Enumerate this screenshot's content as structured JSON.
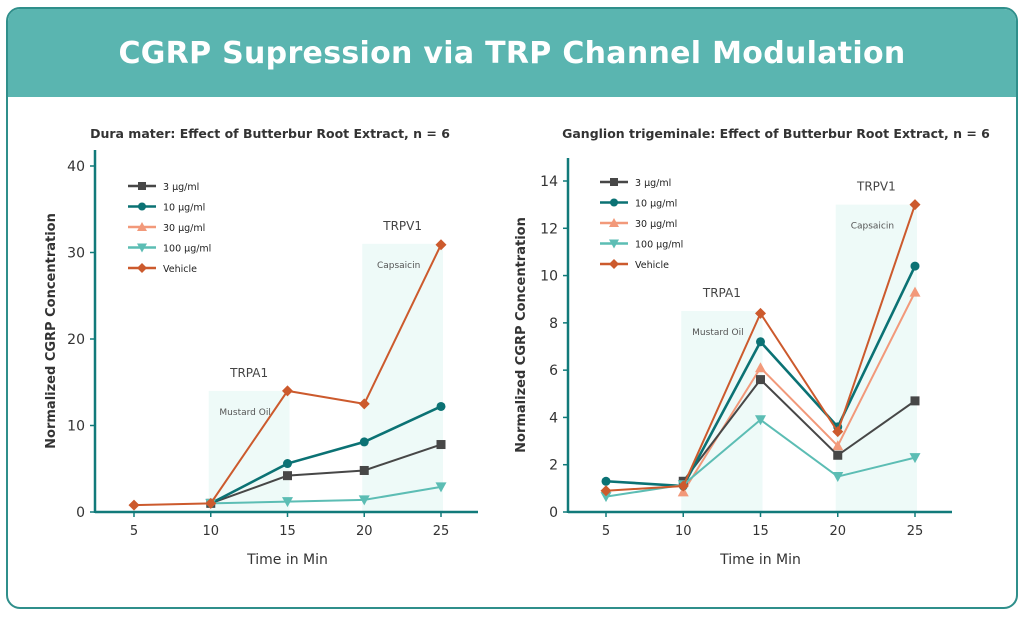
{
  "header": {
    "title": "CGRP Supression via TRP Channel Modulation"
  },
  "chart_data": [
    {
      "type": "line",
      "title": "Dura mater: Effect of Butterbur Root Extract, n = 6",
      "xlabel": "Time in Min",
      "ylabel": "Normalized CGRP Concentration",
      "x": [
        5,
        10,
        15,
        20,
        25
      ],
      "ylim": [
        0,
        40
      ],
      "yticks": [
        0,
        10,
        20,
        30,
        40
      ],
      "legend": "top-left",
      "series": [
        {
          "name": "3 µg/ml",
          "color": "#474747",
          "marker": "square",
          "values": [
            null,
            1.0,
            4.2,
            4.8,
            7.8
          ]
        },
        {
          "name": "10 µg/ml",
          "color": "#0b7274",
          "marker": "circle",
          "values": [
            null,
            1.0,
            5.6,
            8.1,
            12.2
          ]
        },
        {
          "name": "30 µg/ml",
          "color": "#f2997a",
          "marker": "triangle-up",
          "values": [
            null,
            null,
            null,
            null,
            null
          ]
        },
        {
          "name": "100 µg/ml",
          "color": "#5cbdb4",
          "marker": "triangle-down",
          "values": [
            null,
            1.0,
            1.2,
            1.4,
            2.9
          ]
        },
        {
          "name": "Vehicle",
          "color": "#cc5a2d",
          "marker": "diamond",
          "values": [
            0.8,
            1.0,
            14.0,
            12.5,
            30.9
          ]
        }
      ],
      "regions": [
        {
          "label": "TRPA1",
          "sublabel": "Mustard Oil",
          "x": [
            10,
            15
          ],
          "top": 14
        },
        {
          "label": "TRPV1",
          "sublabel": "Capsaicin",
          "x": [
            20,
            25
          ],
          "top": 31
        }
      ]
    },
    {
      "type": "line",
      "title": "Ganglion trigeminale: Effect of Butterbur Root Extract, n = 6",
      "xlabel": "Time in Min",
      "ylabel": "Normalized CGRP Concentration",
      "x": [
        5,
        10,
        15,
        20,
        25
      ],
      "ylim": [
        0,
        14
      ],
      "yticks": [
        0,
        2,
        4,
        6,
        8,
        10,
        12,
        14
      ],
      "legend": "top-left",
      "series": [
        {
          "name": "3 µg/ml",
          "color": "#474747",
          "marker": "square",
          "values": [
            null,
            1.3,
            5.6,
            2.4,
            4.7
          ]
        },
        {
          "name": "10 µg/ml",
          "color": "#0b7274",
          "marker": "circle",
          "values": [
            1.3,
            1.1,
            7.2,
            3.6,
            10.4
          ]
        },
        {
          "name": "30 µg/ml",
          "color": "#f2997a",
          "marker": "triangle-up",
          "values": [
            null,
            0.85,
            6.1,
            2.8,
            9.3
          ]
        },
        {
          "name": "100 µg/ml",
          "color": "#5cbdb4",
          "marker": "triangle-down",
          "values": [
            0.65,
            1.15,
            3.9,
            1.5,
            2.3
          ]
        },
        {
          "name": "Vehicle",
          "color": "#cc5a2d",
          "marker": "diamond",
          "values": [
            0.9,
            1.1,
            8.4,
            3.4,
            13.0
          ]
        }
      ],
      "regions": [
        {
          "label": "TRPA1",
          "sublabel": "Mustard Oil",
          "x": [
            10,
            15
          ],
          "top": 8.5
        },
        {
          "label": "TRPV1",
          "sublabel": "Capsaicin",
          "x": [
            20,
            25
          ],
          "top": 13
        }
      ]
    }
  ]
}
